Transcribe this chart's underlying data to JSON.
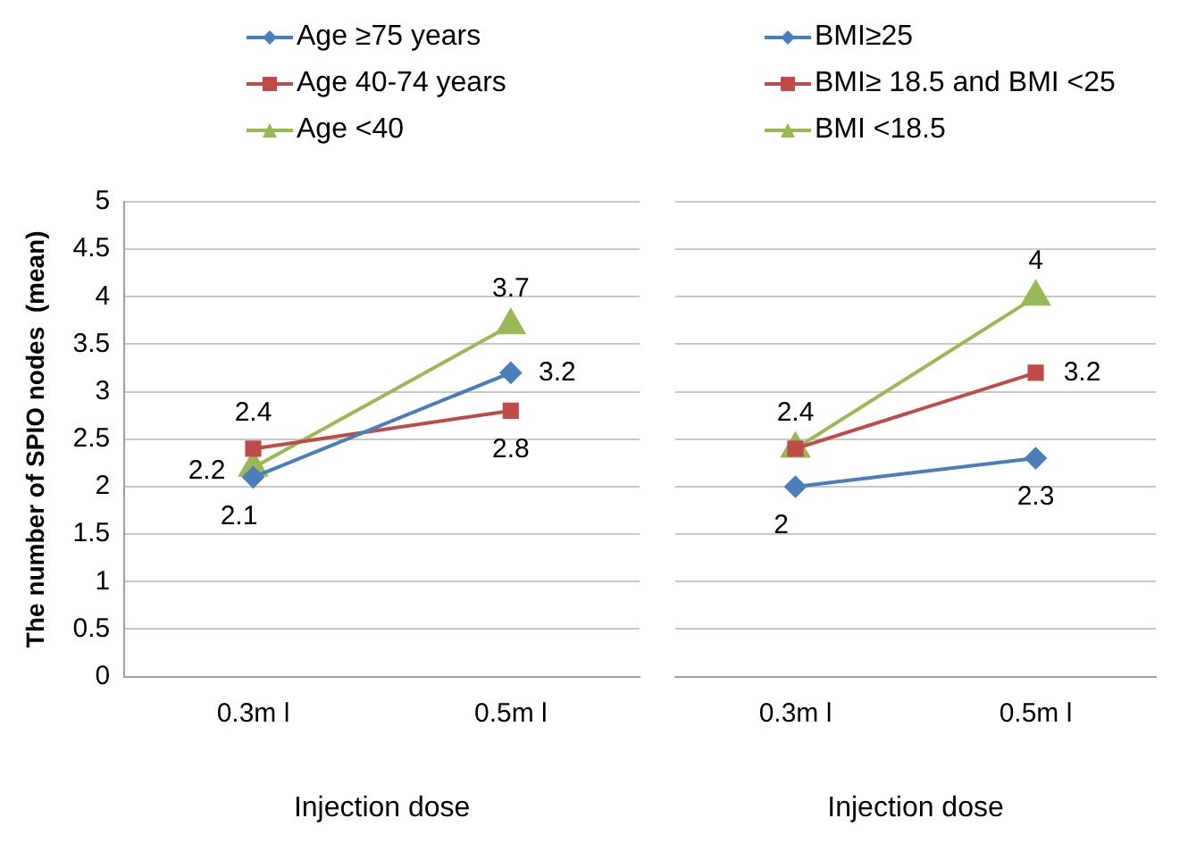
{
  "chart_data": [
    {
      "type": "line",
      "categories": [
        "0.3m l",
        "0.5m l"
      ],
      "xlabel": "Injection dose",
      "ylabel": "The number of SPIO nodes  (mean)",
      "ylim": [
        0,
        5
      ],
      "yticks": [
        0,
        0.5,
        1,
        1.5,
        2,
        2.5,
        3,
        3.5,
        4,
        4.5,
        5
      ],
      "grid": "y",
      "legend": "top",
      "data_labels": true,
      "series": [
        {
          "name": "Age ≥75 years",
          "color": "#4a7ebb",
          "marker": "diamond",
          "values": [
            2.1,
            3.2
          ]
        },
        {
          "name": "Age 40-74 years",
          "color": "#be4b48",
          "marker": "square",
          "values": [
            2.4,
            2.8
          ]
        },
        {
          "name": "Age <40",
          "color": "#98b954",
          "marker": "triangle",
          "values": [
            2.2,
            3.7
          ]
        }
      ]
    },
    {
      "type": "line",
      "categories": [
        "0.3m l",
        "0.5m l"
      ],
      "xlabel": "Injection dose",
      "ylim": [
        0,
        5
      ],
      "yticks": [
        0,
        0.5,
        1,
        1.5,
        2,
        2.5,
        3,
        3.5,
        4,
        4.5,
        5
      ],
      "tick_labels": "x",
      "grid": "y",
      "legend": "top",
      "series": [
        {
          "name": "BMI≥25",
          "color": "#4a7ebb",
          "marker": "diamond",
          "values": [
            2,
            2.3
          ],
          "value_labels": [
            "2",
            "2.3"
          ]
        },
        {
          "name": "BMI≥ 18.5 and BMI <25",
          "color": "#be4b48",
          "marker": "square",
          "values": [
            2.4,
            3.2
          ],
          "value_labels": [
            "2.4",
            "3.2"
          ]
        },
        {
          "name": "BMI <18.5",
          "color": "#98b954",
          "marker": "triangle",
          "values": [
            2.4,
            4
          ],
          "value_labels": [
            null,
            "4"
          ]
        }
      ]
    }
  ]
}
